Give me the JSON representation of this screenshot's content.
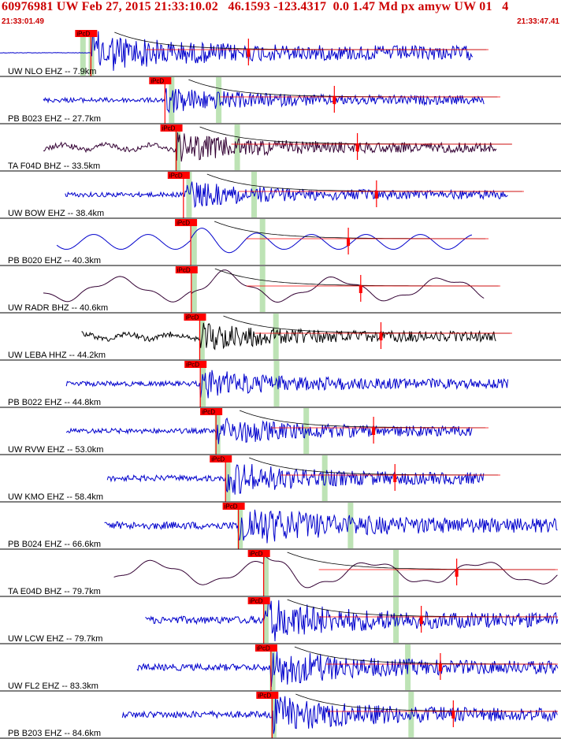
{
  "header": {
    "title": "60976981 UW Feb 27, 2015 21:33:10.02   46.1593 -123.4317  0.0 1.47 Md px amyw UW 01   4",
    "start_time": "21:33:01.49",
    "end_time": "21:33:47.41"
  },
  "pick_label": "iPcD",
  "colors": {
    "title": "#cc0000",
    "pick": "#ff0000",
    "shade": "#bde3b5",
    "trace_blue": "#0000cc",
    "trace_dark": "#330033",
    "trace_black": "#000000",
    "separator": "#000000"
  },
  "traces": [
    {
      "label": "UW NLO EHZ -- 7.9km",
      "color": "blue",
      "style": "hf",
      "pick": 0.162,
      "shade": [
        0.143,
        0.158
      ],
      "amp": 0.45,
      "env": true
    },
    {
      "label": "PB B023 EHZ -- 27.7km",
      "color": "blue",
      "style": "hf",
      "pick": 0.294,
      "shade": [
        0.301,
        0.385
      ],
      "amp": 0.28,
      "env": true
    },
    {
      "label": "TA F04D BHZ -- 33.5km",
      "color": "dark",
      "style": "mixed",
      "pick": 0.314,
      "shade": [
        0.312,
        0.418
      ],
      "amp": 0.3,
      "env": true
    },
    {
      "label": "UW BOW EHZ -- 38.4km",
      "color": "blue",
      "style": "hf",
      "pick": 0.327,
      "shade": [
        0.332,
        0.448
      ],
      "amp": 0.28,
      "env": true
    },
    {
      "label": "PB B020 EHZ -- 40.3km",
      "color": "blue",
      "style": "lf",
      "pick": 0.34,
      "shade": [
        0.341,
        0.463
      ],
      "amp": 0.35,
      "env": true
    },
    {
      "label": "UW RADR BHZ -- 40.6km",
      "color": "dark",
      "style": "vlf",
      "pick": 0.341,
      "shade": [
        0.341,
        0.463
      ],
      "amp": 0.4,
      "env": true
    },
    {
      "label": "UW LEBA HHZ -- 44.2km",
      "color": "black",
      "style": "mixed",
      "pick": 0.356,
      "shade": [
        0.355,
        0.487
      ],
      "amp": 0.3,
      "env": true
    },
    {
      "label": "PB B022 EHZ -- 44.8km",
      "color": "blue",
      "style": "hf",
      "pick": 0.357,
      "shade": [
        0.357,
        0.488
      ],
      "amp": 0.3,
      "env": false
    },
    {
      "label": "UW RVW EHZ -- 53.0km",
      "color": "blue",
      "style": "hf",
      "pick": 0.385,
      "shade": [
        0.383,
        0.541
      ],
      "amp": 0.3,
      "env": true
    },
    {
      "label": "UW KMO EHZ -- 58.4km",
      "color": "blue",
      "style": "hf",
      "pick": 0.402,
      "shade": [
        0.401,
        0.574
      ],
      "amp": 0.35,
      "env": true
    },
    {
      "label": "PB B024 EHZ -- 66.6km",
      "color": "blue",
      "style": "hf",
      "pick": 0.425,
      "shade": [
        0.423,
        0.62
      ],
      "amp": 0.45,
      "env": false
    },
    {
      "label": "TA E04D BHZ -- 79.7km",
      "color": "dark",
      "style": "vlf",
      "pick": 0.47,
      "shade": [
        0.469,
        0.701
      ],
      "amp": 0.4,
      "env": true
    },
    {
      "label": "UW LCW EHZ -- 79.7km",
      "color": "blue",
      "style": "hf",
      "pick": 0.47,
      "shade": [
        0.469,
        0.701
      ],
      "amp": 0.45,
      "env": true
    },
    {
      "label": "UW FL2 EHZ -- 83.3km",
      "color": "blue",
      "style": "hf",
      "pick": 0.483,
      "shade": [
        0.481,
        0.722
      ],
      "amp": 0.4,
      "env": true
    },
    {
      "label": "PB B203 EHZ -- 84.6km",
      "color": "blue",
      "style": "hf",
      "pick": 0.485,
      "shade": [
        0.483,
        0.728
      ],
      "amp": 0.4,
      "env": true
    }
  ]
}
